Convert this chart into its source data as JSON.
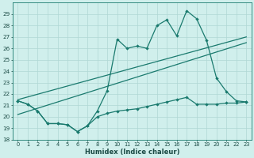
{
  "background_color": "#d0efec",
  "grid_color": "#b0d8d4",
  "line_color": "#1a7a6e",
  "xlabel": "Humidex (Indice chaleur)",
  "xlim": [
    -0.5,
    23.5
  ],
  "ylim": [
    18,
    30
  ],
  "yticks": [
    18,
    19,
    20,
    21,
    22,
    23,
    24,
    25,
    26,
    27,
    28,
    29
  ],
  "xticks": [
    0,
    1,
    2,
    3,
    4,
    5,
    6,
    7,
    8,
    9,
    10,
    11,
    12,
    13,
    14,
    15,
    16,
    17,
    18,
    19,
    20,
    21,
    22,
    23
  ],
  "line_low_x": [
    0,
    1,
    2,
    3,
    4,
    5,
    6,
    7,
    8,
    9,
    10,
    11,
    12,
    13,
    14,
    15,
    16,
    17,
    18,
    19,
    20,
    21,
    22,
    23
  ],
  "line_low_y": [
    21.4,
    21.1,
    20.5,
    19.4,
    19.4,
    19.3,
    18.7,
    19.2,
    20.0,
    20.3,
    20.5,
    20.6,
    20.7,
    20.9,
    21.1,
    21.3,
    21.5,
    21.7,
    21.1,
    21.1,
    21.1,
    21.2,
    21.2,
    21.3
  ],
  "line_high_x": [
    0,
    1,
    2,
    3,
    4,
    5,
    6,
    7,
    8,
    9,
    10,
    11,
    12,
    13,
    14,
    15,
    16,
    17,
    18,
    19,
    20,
    21,
    22,
    23
  ],
  "line_high_y": [
    21.4,
    21.1,
    20.5,
    19.4,
    19.4,
    19.3,
    18.7,
    19.2,
    20.5,
    22.3,
    26.8,
    26.0,
    26.2,
    26.0,
    28.0,
    28.5,
    27.1,
    29.3,
    28.6,
    26.7,
    23.4,
    22.2,
    21.4,
    21.3
  ],
  "trend1_x": [
    0,
    23
  ],
  "trend1_y": [
    21.5,
    27.0
  ],
  "trend2_x": [
    0,
    23
  ],
  "trend2_y": [
    20.2,
    26.5
  ],
  "linewidth": 0.9,
  "marker_size": 2.2
}
